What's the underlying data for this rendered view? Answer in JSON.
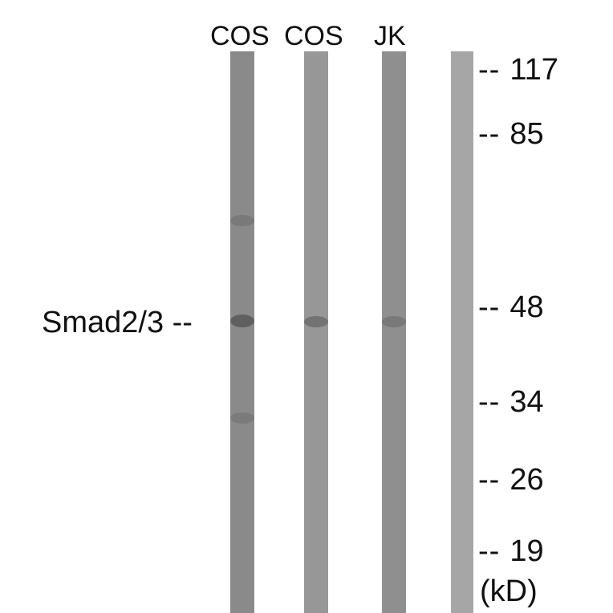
{
  "lanes": [
    {
      "label": "COS",
      "color": "#8a8a8a"
    },
    {
      "label": "COS",
      "color": "#979797"
    },
    {
      "label": "JK",
      "color": "#8f8f8f"
    },
    {
      "label": "",
      "color": "#a6a6a6"
    }
  ],
  "target": {
    "label": "Smad2/3",
    "dash": "--"
  },
  "markers": [
    {
      "dash": "--",
      "value": "117"
    },
    {
      "dash": "--",
      "value": "85"
    },
    {
      "dash": "--",
      "value": "48"
    },
    {
      "dash": "--",
      "value": "34"
    },
    {
      "dash": "--",
      "value": "26"
    },
    {
      "dash": "--",
      "value": "19"
    }
  ],
  "unit": "(kD)"
}
